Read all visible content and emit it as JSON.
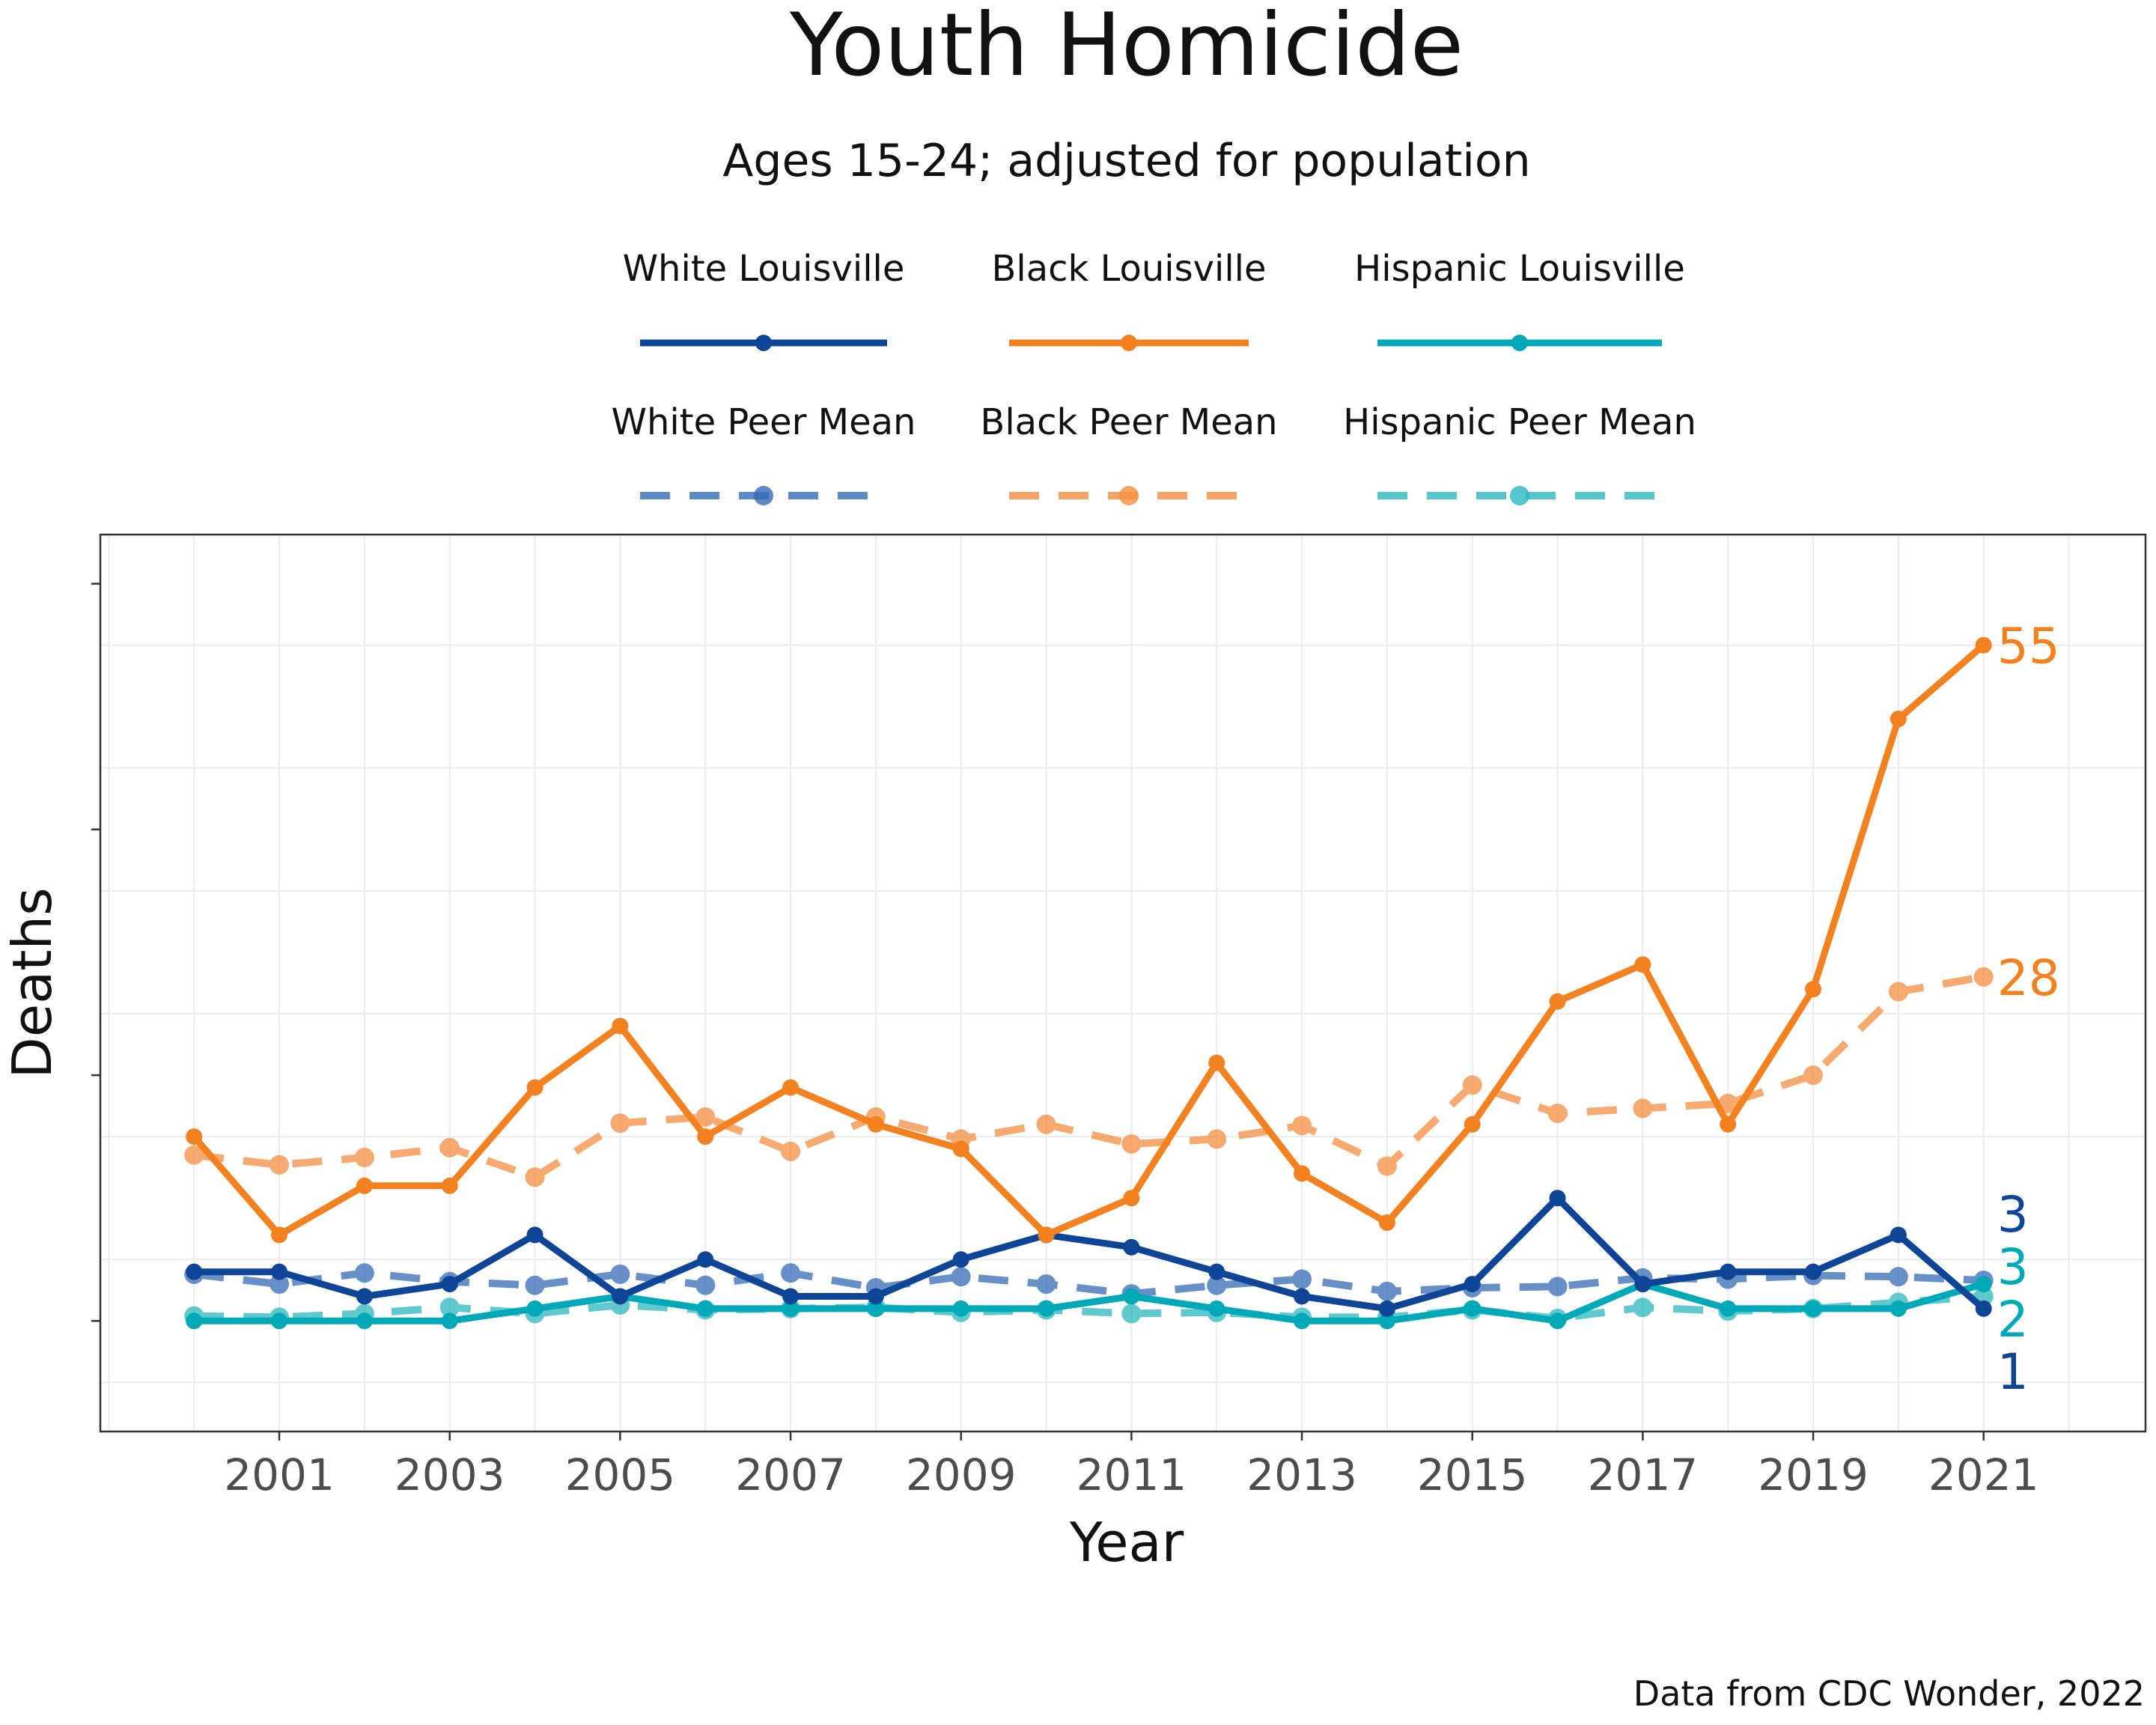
{
  "chart_data": {
    "type": "line",
    "title": "Youth Homicide",
    "subtitle": "Ages 15-24; adjusted for population",
    "xlabel": "Year",
    "ylabel": "Deaths",
    "caption": "Data from CDC Wonder, 2022",
    "x_ticks": [
      "2001",
      "2003",
      "2005",
      "2007",
      "2009",
      "2011",
      "2013",
      "2015",
      "2017",
      "2019",
      "2021"
    ],
    "xlim": [
      1998.9,
      2022.9
    ],
    "ylim": [
      -9,
      64
    ],
    "y_ticks": [
      0,
      20,
      40,
      60
    ],
    "grid": true,
    "legend_position": "top",
    "x": [
      2000,
      2001,
      2002,
      2003,
      2004,
      2005,
      2006,
      2007,
      2008,
      2009,
      2010,
      2011,
      2012,
      2013,
      2014,
      2015,
      2016,
      2017,
      2018,
      2019,
      2020,
      2021
    ],
    "series": [
      {
        "name": "White Louisville",
        "color": "#0e4596",
        "dash": false,
        "values": [
          4,
          4,
          2,
          3,
          7,
          2,
          5,
          2,
          2,
          5,
          7,
          6,
          4,
          2,
          1,
          3,
          10,
          3,
          4,
          4,
          7,
          1
        ]
      },
      {
        "name": "Black Louisville",
        "color": "#f4811f",
        "dash": false,
        "values": [
          15,
          7,
          11,
          11,
          19,
          24,
          15,
          19,
          16,
          14,
          7,
          10,
          21,
          12,
          8,
          16,
          26,
          29,
          16,
          27,
          49,
          55
        ]
      },
      {
        "name": "Hispanic Louisville",
        "color": "#00a9b7",
        "dash": false,
        "values": [
          0,
          0,
          0,
          0,
          1,
          2,
          1,
          1,
          1,
          1,
          1,
          2,
          1,
          0,
          0,
          1,
          0,
          3,
          1,
          1,
          1,
          3
        ]
      },
      {
        "name": "White Peer Mean",
        "color": "#356cb6",
        "dash": true,
        "values": [
          3.8,
          3.0,
          3.9,
          3.2,
          2.9,
          3.8,
          2.9,
          3.9,
          2.7,
          3.6,
          3.0,
          2.2,
          2.9,
          3.4,
          2.4,
          2.7,
          2.8,
          3.5,
          3.4,
          3.7,
          3.6,
          3.3
        ]
      },
      {
        "name": "Black Peer Mean",
        "color": "#f58e3f",
        "dash": true,
        "values": [
          13.5,
          12.7,
          13.3,
          14.1,
          11.7,
          16.1,
          16.6,
          13.8,
          16.6,
          14.8,
          16.0,
          14.4,
          14.8,
          15.9,
          12.6,
          19.2,
          16.9,
          17.3,
          17.7,
          20.0,
          26.8,
          28
        ]
      },
      {
        "name": "Hispanic Peer Mean",
        "color": "#2cb8c1",
        "dash": true,
        "values": [
          0.4,
          0.3,
          0.6,
          1.1,
          0.6,
          1.3,
          0.9,
          1.0,
          1.1,
          0.7,
          0.9,
          0.6,
          0.7,
          0.3,
          0.3,
          0.9,
          0.2,
          1.1,
          0.8,
          1.0,
          1.5,
          2
        ]
      }
    ],
    "end_labels": [
      {
        "text": "55",
        "series": "Black Louisville",
        "color": "#f4811f"
      },
      {
        "text": "28",
        "series": "Black Peer Mean",
        "color": "#f4811f"
      },
      {
        "text": "3",
        "series": "White Peer Mean",
        "color": "#0e4596"
      },
      {
        "text": "3",
        "series": "Hispanic Louisville",
        "color": "#00a9b7"
      },
      {
        "text": "2",
        "series": "Hispanic Peer Mean",
        "color": "#00a9b7"
      },
      {
        "text": "1",
        "series": "White Louisville",
        "color": "#0e4596"
      }
    ]
  }
}
